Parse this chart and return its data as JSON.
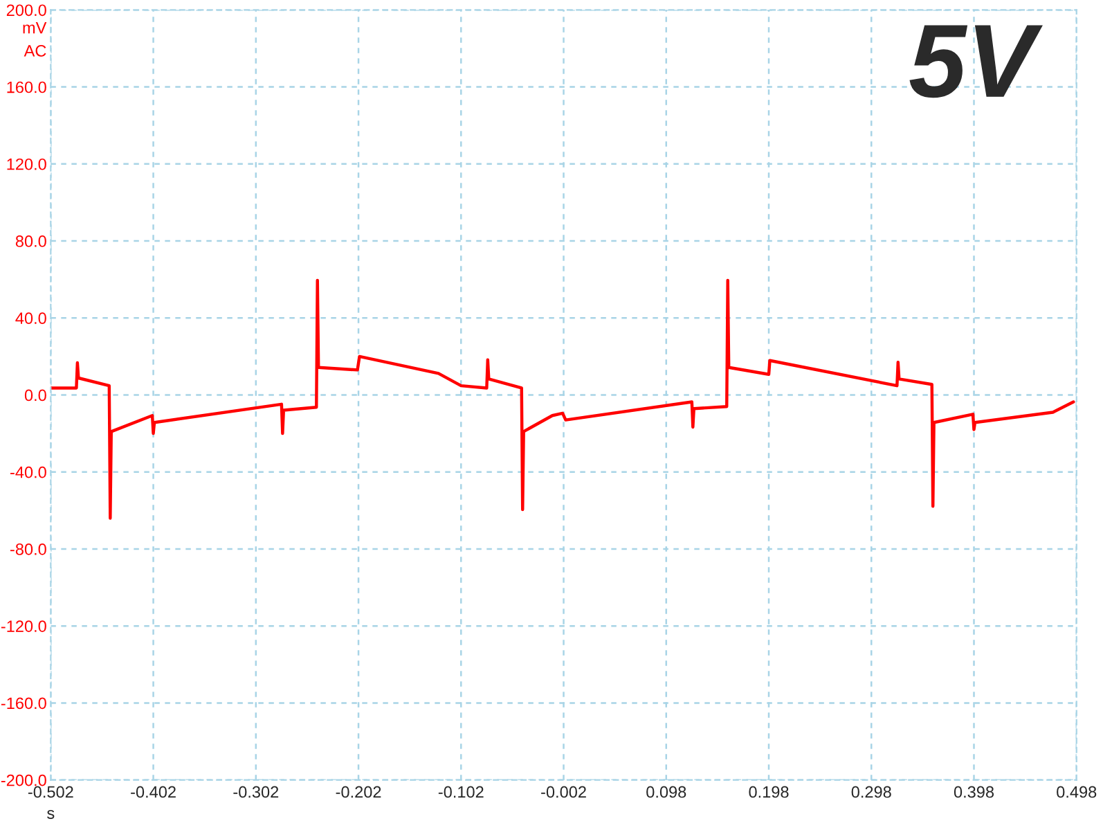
{
  "chart_data": {
    "type": "line",
    "xlabel": "s",
    "ylabel": "mV",
    "annotations": [
      "AC",
      "5V"
    ],
    "x": [
      -0.502,
      -0.477,
      -0.476,
      -0.475,
      -0.445,
      -0.444,
      -0.443,
      -0.403,
      -0.402,
      -0.401,
      -0.277,
      -0.276,
      -0.275,
      -0.243,
      -0.242,
      -0.241,
      -0.203,
      -0.201,
      -0.124,
      -0.102,
      -0.077,
      -0.076,
      -0.075,
      -0.043,
      -0.042,
      -0.041,
      -0.013,
      -0.003,
      0.0,
      0.123,
      0.124,
      0.125,
      0.157,
      0.158,
      0.159,
      0.198,
      0.199,
      0.323,
      0.324,
      0.325,
      0.357,
      0.358,
      0.359,
      0.397,
      0.398,
      0.399,
      0.475,
      0.495
    ],
    "series": [
      {
        "color": "#ff0000",
        "values": [
          3.6,
          3.6,
          16.7,
          8.8,
          4.8,
          -64,
          -19,
          -10.7,
          -20,
          -14.3,
          -4.8,
          -20,
          -7.9,
          -6.4,
          59.5,
          14.3,
          13,
          20,
          11.2,
          4.8,
          3.6,
          18.3,
          8.3,
          3.6,
          -59.5,
          -19,
          -10.7,
          -9.5,
          -13,
          -3.6,
          -16.7,
          -7.1,
          -6,
          59.5,
          14.3,
          10.7,
          17.9,
          4.8,
          17,
          8.3,
          5.5,
          -57.8,
          -14.3,
          -10,
          -18,
          -14.3,
          -9,
          -3.6
        ]
      }
    ],
    "xlim": [
      -0.502,
      0.498
    ],
    "ylim": [
      -200,
      200
    ],
    "xticks": [
      -0.502,
      -0.402,
      -0.302,
      -0.202,
      -0.102,
      -0.002,
      0.098,
      0.198,
      0.298,
      0.398,
      0.498
    ],
    "yticks": [
      {
        "value": -200,
        "label": "-200.0"
      },
      {
        "value": -160,
        "label": "-160.0"
      },
      {
        "value": -120,
        "label": "-120.0"
      },
      {
        "value": -80,
        "label": "-80.0"
      },
      {
        "value": -40,
        "label": "-40.0"
      },
      {
        "value": 0,
        "label": "0.0"
      },
      {
        "value": 40,
        "label": "40.0"
      },
      {
        "value": 80,
        "label": "80.0"
      },
      {
        "value": 120,
        "label": "120.0"
      },
      {
        "value": 160,
        "label": "160.0"
      },
      {
        "value": 200,
        "label": "200.0"
      }
    ],
    "grid": true,
    "line_style": "solid",
    "marker": "none"
  }
}
